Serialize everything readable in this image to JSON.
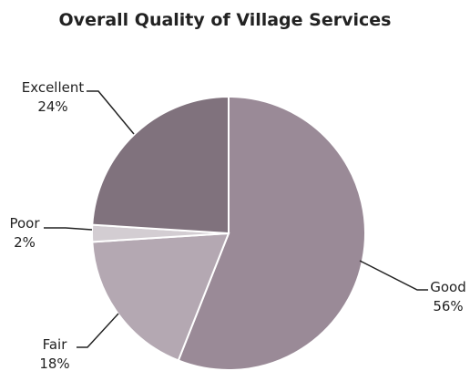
{
  "chart_data": {
    "type": "pie",
    "title": "Overall Quality of Village Services",
    "slices": [
      {
        "label": "Good",
        "value": 56,
        "value_label": "56%",
        "color": "#9a8a97"
      },
      {
        "label": "Fair",
        "value": 18,
        "value_label": "18%",
        "color": "#b4a8b2"
      },
      {
        "label": "Poor",
        "value": 2,
        "value_label": "2%",
        "color": "#d3cdd2"
      },
      {
        "label": "Excellent",
        "value": 24,
        "value_label": "24%",
        "color": "#80727d"
      }
    ],
    "legend": "none",
    "grid": false
  }
}
